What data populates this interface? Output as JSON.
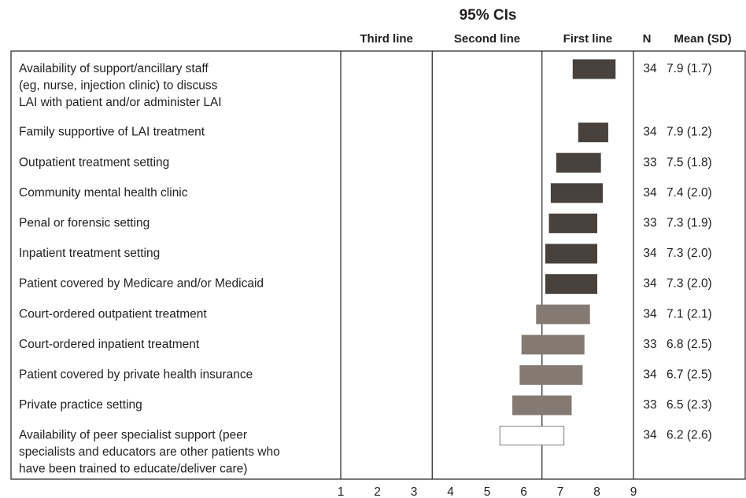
{
  "chart_data": {
    "type": "interval",
    "title": "95% CIs",
    "regions": [
      {
        "label": "Third line",
        "from": 1,
        "to": 3.5
      },
      {
        "label": "Second line",
        "from": 3.5,
        "to": 6.5
      },
      {
        "label": "First line",
        "from": 6.5,
        "to": 9
      }
    ],
    "columns": [
      "N",
      "Mean (SD)"
    ],
    "categories": [
      [
        "Availability of support/ancillary staff",
        "(eg, nurse, injection clinic) to discuss",
        "LAI with patient and/or administer LAI"
      ],
      [
        "Family supportive of LAI treatment"
      ],
      [
        "Outpatient treatment setting"
      ],
      [
        "Community mental health clinic"
      ],
      [
        "Penal or forensic setting"
      ],
      [
        "Inpatient treatment setting"
      ],
      [
        "Patient covered by Medicare and/or Medicaid"
      ],
      [
        "Court-ordered outpatient treatment"
      ],
      [
        "Court-ordered inpatient treatment"
      ],
      [
        "Patient covered by private health insurance"
      ],
      [
        "Private practice setting"
      ],
      [
        "Availability of peer specialist support (peer",
        "specialists and educators are other patients who",
        "have been trained to educate/deliver care)"
      ]
    ],
    "lower": [
      7.35,
      7.5,
      6.9,
      6.75,
      6.7,
      6.6,
      6.6,
      6.35,
      5.95,
      5.9,
      5.7,
      5.35
    ],
    "upper": [
      8.5,
      8.3,
      8.1,
      8.15,
      8.0,
      8.0,
      8.0,
      7.8,
      7.65,
      7.6,
      7.3,
      7.1
    ],
    "colors": [
      "#48413c",
      "#48413c",
      "#48413c",
      "#48413c",
      "#48413c",
      "#48413c",
      "#48413c",
      "#857a72",
      "#857a72",
      "#857a72",
      "#857a72",
      "#ffffff"
    ],
    "n": [
      34,
      34,
      33,
      34,
      33,
      34,
      34,
      34,
      33,
      34,
      33,
      34
    ],
    "mean_sd": [
      "7.9 (1.7)",
      "7.9 (1.2)",
      "7.5 (1.8)",
      "7.4 (2.0)",
      "7.3 (1.9)",
      "7.3 (2.0)",
      "7.3 (2.0)",
      "7.1 (2.1)",
      "6.8 (2.5)",
      "6.7 (2.5)",
      "6.5 (2.3)",
      "6.2 (2.6)"
    ],
    "xlim": [
      1,
      9
    ],
    "xticks": [
      1,
      2,
      3,
      4,
      5,
      6,
      7,
      8,
      9
    ]
  }
}
